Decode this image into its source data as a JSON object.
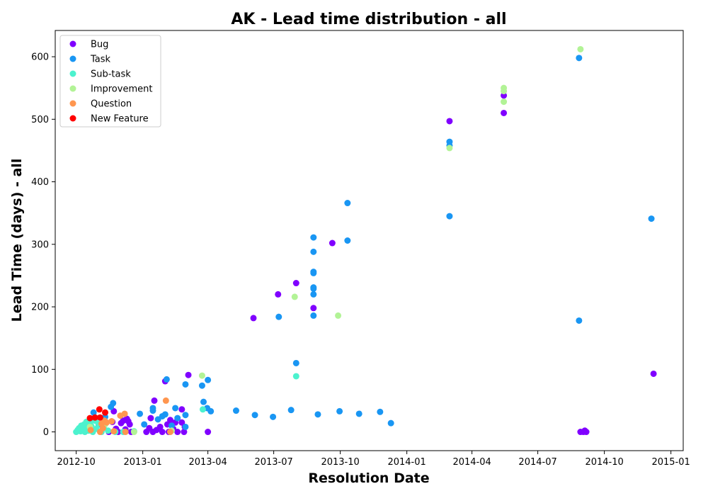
{
  "chart_data": {
    "type": "scatter",
    "title": "AK - Lead time distribution - all",
    "xlabel": "Resolution Date",
    "ylabel": "Lead Time (days) - all",
    "xlim": [
      "2012-09-02",
      "2015-01-18"
    ],
    "ylim": [
      -30,
      642
    ],
    "x_ticks": [
      {
        "date": "2012-10-01",
        "label": "2012-10"
      },
      {
        "date": "2013-01-01",
        "label": "2013-01"
      },
      {
        "date": "2013-04-01",
        "label": "2013-04"
      },
      {
        "date": "2013-07-01",
        "label": "2013-07"
      },
      {
        "date": "2013-10-01",
        "label": "2013-10"
      },
      {
        "date": "2014-01-01",
        "label": "2014-01"
      },
      {
        "date": "2014-04-01",
        "label": "2014-04"
      },
      {
        "date": "2014-07-01",
        "label": "2014-07"
      },
      {
        "date": "2014-10-01",
        "label": "2014-10"
      },
      {
        "date": "2015-01-01",
        "label": "2015-01"
      }
    ],
    "y_ticks": [
      0,
      100,
      200,
      300,
      400,
      500,
      600
    ],
    "grid": false,
    "legend": "top-left",
    "series": [
      {
        "name": "Bug",
        "color": "#8000ff",
        "points": [
          [
            "2012-11-15",
            0
          ],
          [
            "2012-11-20",
            16
          ],
          [
            "2012-11-22",
            33
          ],
          [
            "2012-11-25",
            5
          ],
          [
            "2012-11-28",
            0
          ],
          [
            "2012-12-02",
            14
          ],
          [
            "2012-12-05",
            18
          ],
          [
            "2012-12-08",
            4
          ],
          [
            "2012-12-10",
            21
          ],
          [
            "2012-12-12",
            17
          ],
          [
            "2012-12-14",
            12
          ],
          [
            "2012-12-16",
            0
          ],
          [
            "2013-01-06",
            0
          ],
          [
            "2013-01-10",
            6
          ],
          [
            "2013-01-12",
            22
          ],
          [
            "2013-01-15",
            0
          ],
          [
            "2013-01-17",
            50
          ],
          [
            "2013-01-20",
            3
          ],
          [
            "2013-01-25",
            8
          ],
          [
            "2013-01-28",
            0
          ],
          [
            "2013-02-01",
            81
          ],
          [
            "2013-02-04",
            12
          ],
          [
            "2013-02-06",
            0
          ],
          [
            "2013-02-08",
            19
          ],
          [
            "2013-02-12",
            5
          ],
          [
            "2013-02-15",
            15
          ],
          [
            "2013-02-18",
            0
          ],
          [
            "2013-02-24",
            36
          ],
          [
            "2013-02-24",
            15
          ],
          [
            "2013-02-27",
            0
          ],
          [
            "2013-02-28",
            8
          ],
          [
            "2013-03-05",
            91
          ],
          [
            "2013-04-01",
            0
          ],
          [
            "2013-06-03",
            182
          ],
          [
            "2013-07-07",
            220
          ],
          [
            "2013-08-01",
            238
          ],
          [
            "2013-08-25",
            198
          ],
          [
            "2013-09-20",
            302
          ],
          [
            "2014-03-01",
            497
          ],
          [
            "2014-05-15",
            538
          ],
          [
            "2014-05-15",
            510
          ],
          [
            "2014-08-29",
            0
          ],
          [
            "2014-09-02",
            0
          ],
          [
            "2014-09-04",
            2
          ],
          [
            "2014-09-06",
            0
          ],
          [
            "2014-12-08",
            93
          ]
        ]
      },
      {
        "name": "Task",
        "color": "#1996f3",
        "points": [
          [
            "2012-10-25",
            31
          ],
          [
            "2012-11-01",
            12
          ],
          [
            "2012-11-10",
            24
          ],
          [
            "2012-11-18",
            40
          ],
          [
            "2012-11-21",
            46
          ],
          [
            "2012-12-28",
            29
          ],
          [
            "2013-01-03",
            12
          ],
          [
            "2013-01-15",
            38
          ],
          [
            "2013-01-15",
            34
          ],
          [
            "2013-01-22",
            20
          ],
          [
            "2013-01-28",
            25
          ],
          [
            "2013-02-01",
            28
          ],
          [
            "2013-02-03",
            84
          ],
          [
            "2013-02-10",
            10
          ],
          [
            "2013-02-15",
            38
          ],
          [
            "2013-02-18",
            22
          ],
          [
            "2013-03-01",
            76
          ],
          [
            "2013-03-01",
            27
          ],
          [
            "2013-03-01",
            8
          ],
          [
            "2013-03-24",
            74
          ],
          [
            "2013-03-26",
            48
          ],
          [
            "2013-03-31",
            38
          ],
          [
            "2013-04-01",
            83
          ],
          [
            "2013-04-05",
            33
          ],
          [
            "2013-05-10",
            34
          ],
          [
            "2013-06-05",
            27
          ],
          [
            "2013-06-30",
            24
          ],
          [
            "2013-07-08",
            184
          ],
          [
            "2013-07-25",
            35
          ],
          [
            "2013-08-01",
            110
          ],
          [
            "2013-08-25",
            311
          ],
          [
            "2013-08-25",
            288
          ],
          [
            "2013-08-25",
            256
          ],
          [
            "2013-08-25",
            254
          ],
          [
            "2013-08-25",
            231
          ],
          [
            "2013-08-25",
            229
          ],
          [
            "2013-08-25",
            220
          ],
          [
            "2013-08-25",
            186
          ],
          [
            "2013-08-31",
            28
          ],
          [
            "2013-09-30",
            33
          ],
          [
            "2013-10-11",
            366
          ],
          [
            "2013-10-11",
            306
          ],
          [
            "2013-10-27",
            29
          ],
          [
            "2013-11-25",
            32
          ],
          [
            "2013-12-10",
            14
          ],
          [
            "2014-03-01",
            464
          ],
          [
            "2014-03-01",
            458
          ],
          [
            "2014-03-01",
            345
          ],
          [
            "2014-08-27",
            598
          ],
          [
            "2014-08-27",
            178
          ],
          [
            "2014-12-05",
            341
          ]
        ]
      },
      {
        "name": "Sub-task",
        "color": "#4cf2ce",
        "points": [
          [
            "2012-10-01",
            0
          ],
          [
            "2012-10-03",
            3
          ],
          [
            "2012-10-05",
            6
          ],
          [
            "2012-10-07",
            1
          ],
          [
            "2012-10-08",
            10
          ],
          [
            "2012-10-10",
            4
          ],
          [
            "2012-10-12",
            12
          ],
          [
            "2012-10-13",
            0
          ],
          [
            "2012-10-15",
            16
          ],
          [
            "2012-10-17",
            7
          ],
          [
            "2012-10-18",
            2
          ],
          [
            "2012-10-20",
            14
          ],
          [
            "2012-10-22",
            9
          ],
          [
            "2012-10-24",
            0
          ],
          [
            "2012-10-27",
            18
          ],
          [
            "2012-10-29",
            5
          ],
          [
            "2012-11-01",
            13
          ],
          [
            "2012-11-05",
            0
          ],
          [
            "2012-11-08",
            8
          ],
          [
            "2012-11-14",
            2
          ],
          [
            "2012-11-24",
            0
          ],
          [
            "2012-12-05",
            0
          ],
          [
            "2012-12-20",
            1
          ],
          [
            "2013-03-25",
            36
          ],
          [
            "2013-08-01",
            89
          ]
        ]
      },
      {
        "name": "Improvement",
        "color": "#b2f396",
        "points": [
          [
            "2012-10-20",
            8
          ],
          [
            "2012-11-10",
            12
          ],
          [
            "2012-12-20",
            0
          ],
          [
            "2013-02-10",
            2
          ],
          [
            "2013-03-24",
            90
          ],
          [
            "2013-07-30",
            216
          ],
          [
            "2013-09-28",
            186
          ],
          [
            "2014-03-01",
            454
          ],
          [
            "2014-05-15",
            550
          ],
          [
            "2014-05-15",
            545
          ],
          [
            "2014-05-15",
            528
          ],
          [
            "2014-08-29",
            612
          ]
        ]
      },
      {
        "name": "Question",
        "color": "#ff964f",
        "points": [
          [
            "2012-10-21",
            3
          ],
          [
            "2012-11-03",
            0
          ],
          [
            "2012-11-05",
            13
          ],
          [
            "2012-11-07",
            6
          ],
          [
            "2012-11-09",
            18
          ],
          [
            "2012-11-12",
            15
          ],
          [
            "2012-11-19",
            17
          ],
          [
            "2012-11-22",
            1
          ],
          [
            "2012-12-01",
            26
          ],
          [
            "2012-12-07",
            29
          ],
          [
            "2012-12-08",
            0
          ],
          [
            "2013-02-02",
            50
          ],
          [
            "2013-02-08",
            0
          ]
        ]
      },
      {
        "name": "New Feature",
        "color": "#ff0000",
        "points": [
          [
            "2012-10-20",
            22
          ],
          [
            "2012-10-27",
            23
          ],
          [
            "2012-11-02",
            36
          ],
          [
            "2012-11-03",
            23
          ],
          [
            "2012-11-10",
            31
          ]
        ]
      }
    ]
  }
}
